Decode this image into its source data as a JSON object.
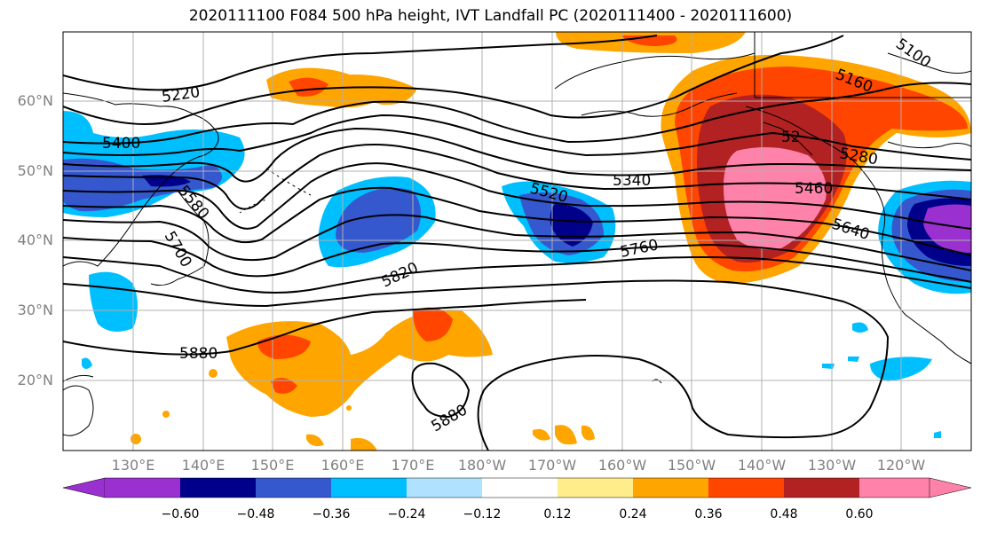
{
  "title": "2020111100 F084 500 hPa height, IVT Landfall PC (2020111400 - 2020111600)",
  "lat_labels": [
    "60°N",
    "50°N",
    "40°N",
    "30°N",
    "20°N"
  ],
  "lon_labels": [
    "130°E",
    "140°E",
    "150°E",
    "160°E",
    "170°E",
    "180°W",
    "170°W",
    "160°W",
    "150°W",
    "140°W",
    "130°W",
    "120°W"
  ],
  "contour_labels": [
    "5220",
    "5400",
    "5580",
    "5700",
    "5820",
    "5880",
    "5880",
    "5520",
    "5340",
    "5760",
    "5460",
    "5640",
    "5280",
    "5160",
    "5100",
    "52"
  ],
  "colorbar": {
    "ticks": [
      "−0.60",
      "−0.48",
      "−0.36",
      "−0.24",
      "−0.12",
      "0.12",
      "0.24",
      "0.36",
      "0.48",
      "0.60"
    ],
    "colors": [
      "#9b30d0",
      "#00008b",
      "#3558cf",
      "#00bfff",
      "#b0e2ff",
      "#ffffff",
      "#ffec8b",
      "#ffa500",
      "#ff4500",
      "#b22222",
      "#ff82ab",
      "#ff82ab"
    ]
  }
}
